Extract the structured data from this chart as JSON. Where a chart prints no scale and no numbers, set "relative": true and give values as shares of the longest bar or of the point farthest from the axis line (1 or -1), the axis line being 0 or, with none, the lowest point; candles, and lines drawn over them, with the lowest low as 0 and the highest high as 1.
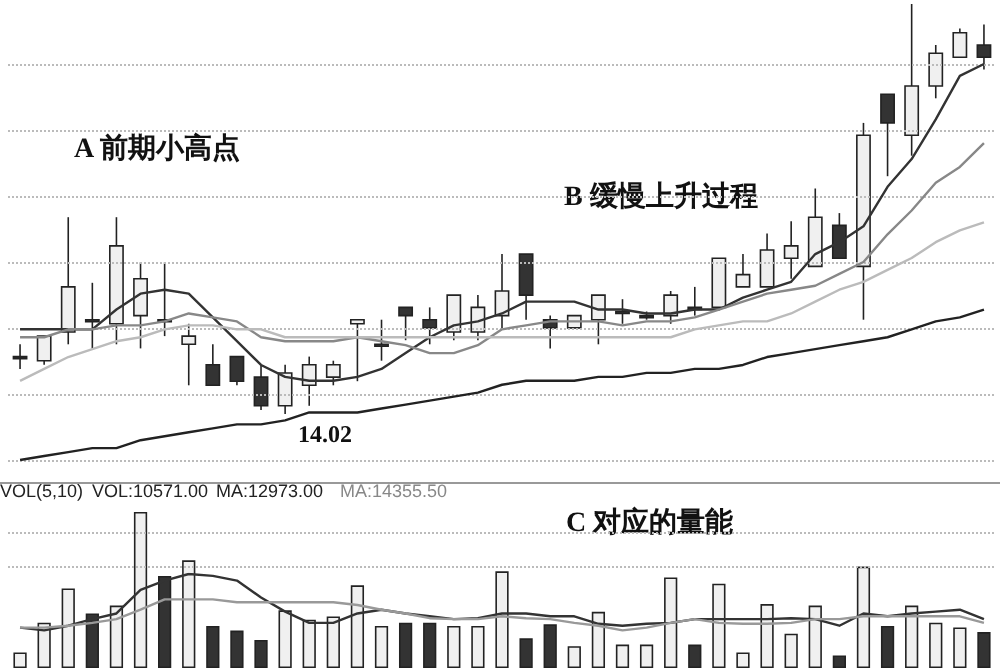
{
  "chart_data": [
    {
      "type": "candlestick",
      "relative": true,
      "categories": [
        null,
        null,
        null,
        null,
        null,
        null,
        null,
        null,
        null,
        null,
        null,
        null,
        null,
        null,
        null,
        null,
        null,
        null,
        null,
        null,
        null,
        null,
        null,
        null,
        null,
        null,
        null,
        null,
        null,
        null,
        null,
        null,
        null,
        null,
        null,
        null,
        null,
        null,
        null,
        null,
        null
      ],
      "ohlc": [
        [
          0.14,
          0.17,
          0.11,
          0.14
        ],
        [
          0.13,
          0.19,
          0.12,
          0.19
        ],
        [
          0.2,
          0.48,
          0.17,
          0.31
        ],
        [
          0.23,
          0.32,
          0.16,
          0.23
        ],
        [
          0.22,
          0.48,
          0.17,
          0.41
        ],
        [
          0.24,
          0.37,
          0.16,
          0.33
        ],
        [
          0.23,
          0.37,
          0.19,
          0.23
        ],
        [
          0.17,
          0.22,
          0.07,
          0.19
        ],
        [
          0.12,
          0.17,
          0.07,
          0.07
        ],
        [
          0.14,
          0.14,
          0.07,
          0.08
        ],
        [
          0.09,
          0.12,
          0.01,
          0.02
        ],
        [
          0.02,
          0.12,
          0,
          0.1
        ],
        [
          0.07,
          0.14,
          0.02,
          0.12
        ],
        [
          0.09,
          0.13,
          0.07,
          0.12
        ],
        [
          0.22,
          0.23,
          0.08,
          0.23
        ],
        [
          0.17,
          0.23,
          0.13,
          0.17
        ],
        [
          0.26,
          0.26,
          0.18,
          0.24
        ],
        [
          0.23,
          0.26,
          0.17,
          0.21
        ],
        [
          0.2,
          0.29,
          0.18,
          0.29
        ],
        [
          0.2,
          0.29,
          0.18,
          0.26
        ],
        [
          0.24,
          0.39,
          0.21,
          0.3
        ],
        [
          0.39,
          0.39,
          0.23,
          0.29
        ],
        [
          0.23,
          0.24,
          0.16,
          0.21
        ],
        [
          0.21,
          0.24,
          0.21,
          0.24
        ],
        [
          0.23,
          0.29,
          0.17,
          0.29
        ],
        [
          0.25,
          0.28,
          0.22,
          0.25
        ],
        [
          0.24,
          0.25,
          0.23,
          0.24
        ],
        [
          0.24,
          0.3,
          0.22,
          0.29
        ],
        [
          0.26,
          0.31,
          0.24,
          0.26
        ],
        [
          0.26,
          0.38,
          0.26,
          0.38
        ],
        [
          0.31,
          0.39,
          0.31,
          0.34
        ],
        [
          0.31,
          0.44,
          0.31,
          0.4
        ],
        [
          0.38,
          0.47,
          0.33,
          0.41
        ],
        [
          0.36,
          0.55,
          0.36,
          0.48
        ],
        [
          0.46,
          0.49,
          0.38,
          0.38
        ],
        [
          0.36,
          0.71,
          0.23,
          0.68
        ],
        [
          0.78,
          0.78,
          0.58,
          0.71
        ],
        [
          0.68,
          1,
          0.63,
          0.8
        ],
        [
          0.8,
          0.9,
          0.77,
          0.88
        ],
        [
          0.87,
          0.94,
          0.87,
          0.93
        ],
        [
          0.9,
          0.95,
          0.84,
          0.87
        ]
      ],
      "colors": [
        "#333333",
        "#f0f0f0",
        "#f0f0f0",
        "#333333",
        "#f0f0f0",
        "#f0f0f0",
        "#333333",
        "#f0f0f0",
        "#333333",
        "#333333",
        "#333333",
        "#f0f0f0",
        "#f0f0f0",
        "#f0f0f0",
        "#f0f0f0",
        "#333333",
        "#333333",
        "#333333",
        "#f0f0f0",
        "#f0f0f0",
        "#f0f0f0",
        "#333333",
        "#333333",
        "#f0f0f0",
        "#f0f0f0",
        "#333333",
        "#333333",
        "#f0f0f0",
        "#333333",
        "#f0f0f0",
        "#f0f0f0",
        "#f0f0f0",
        "#f0f0f0",
        "#f0f0f0",
        "#333333",
        "#f0f0f0",
        "#333333",
        "#f0f0f0",
        "#f0f0f0",
        "#f0f0f0",
        "#333333"
      ],
      "annotations": [
        "A 前期小高点",
        "B 缓慢上升过程",
        "14.02"
      ]
    },
    {
      "type": "line",
      "relative": true,
      "marker": "none",
      "grid": "y",
      "categories": [
        null,
        null,
        null,
        null,
        null,
        null,
        null,
        null,
        null,
        null,
        null,
        null,
        null,
        null,
        null,
        null,
        null,
        null,
        null,
        null,
        null,
        null,
        null,
        null,
        null,
        null,
        null,
        null,
        null,
        null,
        null,
        null,
        null,
        null,
        null,
        null,
        null,
        null,
        null,
        null,
        null
      ],
      "series": [
        {
          "color": "#333333",
          "values": [
            0.33,
            0.33,
            0.33,
            0.33,
            0.38,
            0.42,
            0.43,
            0.42,
            0.36,
            0.3,
            0.24,
            0.21,
            0.2,
            0.2,
            0.21,
            0.23,
            0.27,
            0.31,
            0.34,
            0.35,
            0.37,
            0.4,
            0.4,
            0.4,
            0.38,
            0.38,
            0.37,
            0.37,
            0.38,
            0.38,
            0.41,
            0.43,
            0.45,
            0.52,
            0.55,
            0.59,
            0.69,
            0.76,
            0.86,
            0.97,
            1
          ]
        },
        {
          "color": "#888888",
          "values": [
            0.31,
            0.31,
            0.33,
            0.33,
            0.34,
            0.34,
            0.35,
            0.37,
            0.36,
            0.35,
            0.31,
            0.3,
            0.3,
            0.3,
            0.31,
            0.3,
            0.29,
            0.27,
            0.27,
            0.29,
            0.33,
            0.34,
            0.35,
            0.35,
            0.35,
            0.34,
            0.35,
            0.35,
            0.36,
            0.38,
            0.4,
            0.42,
            0.43,
            0.44,
            0.47,
            0.5,
            0.57,
            0.63,
            0.7,
            0.74,
            0.8
          ]
        },
        {
          "color": "#bbbbbb",
          "values": [
            0.2,
            0.23,
            0.26,
            0.28,
            0.3,
            0.31,
            0.33,
            0.34,
            0.34,
            0.33,
            0.33,
            0.31,
            0.31,
            0.31,
            0.31,
            0.31,
            0.31,
            0.31,
            0.31,
            0.31,
            0.31,
            0.31,
            0.31,
            0.31,
            0.31,
            0.31,
            0.31,
            0.31,
            0.33,
            0.34,
            0.35,
            0.35,
            0.37,
            0.4,
            0.43,
            0.45,
            0.48,
            0.51,
            0.55,
            0.58,
            0.6
          ]
        },
        {
          "color": "#222222",
          "values": [
            0,
            0.01,
            0.02,
            0.03,
            0.03,
            0.05,
            0.06,
            0.07,
            0.08,
            0.09,
            0.09,
            0.1,
            0.12,
            0.12,
            0.12,
            0.13,
            0.14,
            0.15,
            0.16,
            0.17,
            0.19,
            0.2,
            0.2,
            0.2,
            0.21,
            0.21,
            0.22,
            0.22,
            0.23,
            0.23,
            0.24,
            0.26,
            0.27,
            0.28,
            0.29,
            0.3,
            0.31,
            0.33,
            0.35,
            0.36,
            0.38
          ]
        }
      ]
    },
    {
      "type": "bar",
      "relative": true,
      "ref_lines": [
        {
          "axis": "y",
          "value": 0.87,
          "color": "#bbbbbb",
          "line_style": "dotted"
        },
        {
          "axis": "y",
          "value": 0.65,
          "color": "#bbbbbb",
          "line_style": "dotted"
        }
      ],
      "categories": [
        null,
        null,
        null,
        null,
        null,
        null,
        null,
        null,
        null,
        null,
        null,
        null,
        null,
        null,
        null,
        null,
        null,
        null,
        null,
        null,
        null,
        null,
        null,
        null,
        null,
        null,
        null,
        null,
        null,
        null,
        null,
        null,
        null,
        null,
        null,
        null,
        null,
        null,
        null,
        null,
        null
      ],
      "colors": [
        "#f0f0f0",
        "#f0f0f0",
        "#f0f0f0",
        "#333333",
        "#f0f0f0",
        "#f0f0f0",
        "#333333",
        "#f0f0f0",
        "#333333",
        "#333333",
        "#333333",
        "#f0f0f0",
        "#f0f0f0",
        "#f0f0f0",
        "#f0f0f0",
        "#f0f0f0",
        "#333333",
        "#333333",
        "#f0f0f0",
        "#f0f0f0",
        "#f0f0f0",
        "#333333",
        "#333333",
        "#f0f0f0",
        "#f0f0f0",
        "#f0f0f0",
        "#f0f0f0",
        "#f0f0f0",
        "#333333",
        "#f0f0f0",
        "#f0f0f0",
        "#f0f0f0",
        "#f0f0f0",
        "#f0f0f0",
        "#333333",
        "#f0f0f0",
        "#333333",
        "#f0f0f0",
        "#f0f0f0",
        "#f0f0f0",
        "#333333"
      ],
      "values": [
        0.1,
        0.29,
        0.51,
        0.35,
        0.4,
        1,
        0.59,
        0.69,
        0.27,
        0.24,
        0.18,
        0.37,
        0.31,
        0.33,
        0.53,
        0.27,
        0.29,
        0.29,
        0.27,
        0.27,
        0.62,
        0.19,
        0.28,
        0.14,
        0.36,
        0.15,
        0.15,
        0.58,
        0.15,
        0.54,
        0.1,
        0.41,
        0.22,
        0.4,
        0.08,
        0.65,
        0.27,
        0.4,
        0.29,
        0.26,
        0.23
      ],
      "annotations": [
        "VOL(5,10)",
        "VOL:10571.00",
        "MA:12973.00",
        "MA:14355.50",
        "C 对应的量能"
      ]
    },
    {
      "type": "line",
      "relative": true,
      "marker": "none",
      "categories": [
        null,
        null,
        null,
        null,
        null,
        null,
        null,
        null,
        null,
        null,
        null,
        null,
        null,
        null,
        null,
        null,
        null,
        null,
        null,
        null,
        null,
        null,
        null,
        null,
        null,
        null,
        null,
        null,
        null,
        null,
        null,
        null,
        null,
        null,
        null,
        null,
        null,
        null,
        null,
        null,
        null
      ],
      "series": [
        {
          "color": "#333333",
          "values": [
            0.43,
            0.4,
            0.45,
            0.52,
            0.58,
            0.83,
            0.93,
            1,
            0.98,
            0.93,
            0.75,
            0.6,
            0.48,
            0.48,
            0.58,
            0.62,
            0.58,
            0.55,
            0.52,
            0.53,
            0.58,
            0.58,
            0.55,
            0.55,
            0.47,
            0.45,
            0.47,
            0.48,
            0.52,
            0.52,
            0.52,
            0.52,
            0.53,
            0.52,
            0.45,
            0.58,
            0.55,
            0.58,
            0.6,
            0.62,
            0.52
          ]
        },
        {
          "color": "#999999",
          "values": [
            0.43,
            0.43,
            0.45,
            0.48,
            0.52,
            0.62,
            0.73,
            0.73,
            0.73,
            0.7,
            0.7,
            0.7,
            0.7,
            0.7,
            0.67,
            0.62,
            0.58,
            0.53,
            0.52,
            0.52,
            0.55,
            0.53,
            0.52,
            0.48,
            0.45,
            0.4,
            0.43,
            0.48,
            0.52,
            0.48,
            0.47,
            0.47,
            0.48,
            0.52,
            0.52,
            0.55,
            0.55,
            0.55,
            0.55,
            0.55,
            0.48
          ]
        }
      ]
    }
  ]
}
